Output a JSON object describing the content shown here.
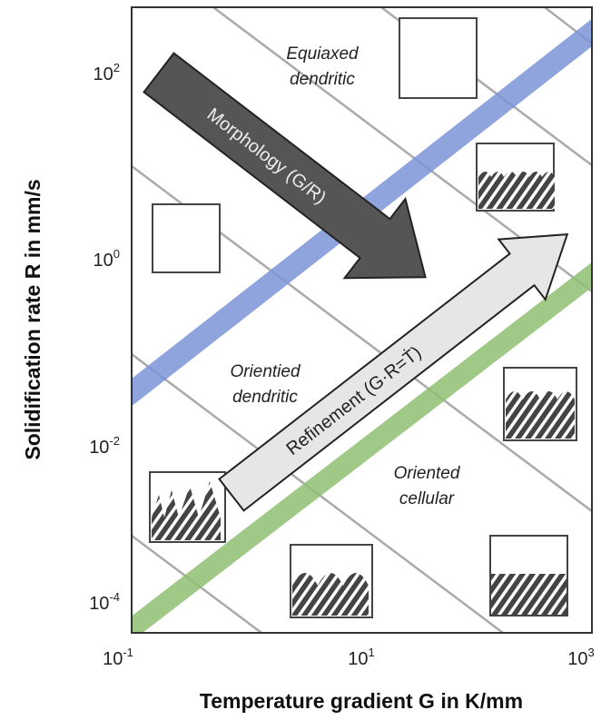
{
  "axes": {
    "x_title": "Temperature gradient G in K/mm",
    "y_title": "Solidification rate R in mm/s",
    "x_ticks": [
      {
        "base": "10",
        "exponent": "-1"
      },
      {
        "base": "10",
        "exponent": "1"
      },
      {
        "base": "10",
        "exponent": "3"
      }
    ],
    "y_ticks": [
      {
        "base": "10",
        "exponent": "2"
      },
      {
        "base": "10",
        "exponent": "0"
      },
      {
        "base": "10",
        "exponent": "-2"
      },
      {
        "base": "10",
        "exponent": "-4"
      }
    ]
  },
  "regions": [
    {
      "lines": [
        "Equiaxed",
        "dendritic"
      ]
    },
    {
      "lines": [
        "Orientied",
        "dendritic"
      ]
    },
    {
      "lines": [
        "Oriented",
        "cellular"
      ]
    }
  ],
  "arrows": {
    "morphology": "Morphology (G/R)",
    "refinement": "Refinement (G·R=Ṫ)"
  }
}
